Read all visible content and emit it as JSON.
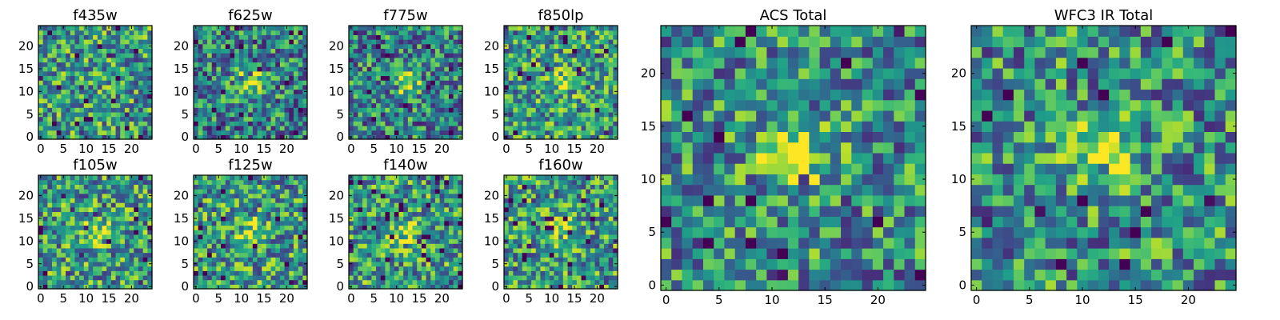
{
  "chart_data": [
    {
      "type": "heatmap",
      "title": "f435w",
      "grid": "25x25",
      "xlim": [
        0,
        24
      ],
      "ylim": [
        0,
        24
      ],
      "xticks": [
        "0",
        "5",
        "10",
        "15",
        "20"
      ],
      "yticks": [
        "0",
        "5",
        "10",
        "15",
        "20"
      ],
      "colormap": "viridis",
      "source_peak": 0.0
    },
    {
      "type": "heatmap",
      "title": "f625w",
      "grid": "25x25",
      "xlim": [
        0,
        24
      ],
      "ylim": [
        0,
        24
      ],
      "xticks": [
        "0",
        "5",
        "10",
        "15",
        "20"
      ],
      "yticks": [
        "0",
        "5",
        "10",
        "15",
        "20"
      ],
      "colormap": "viridis",
      "source_peak": 0.85
    },
    {
      "type": "heatmap",
      "title": "f775w",
      "grid": "25x25",
      "xlim": [
        0,
        24
      ],
      "ylim": [
        0,
        24
      ],
      "xticks": [
        "0",
        "5",
        "10",
        "15",
        "20"
      ],
      "yticks": [
        "0",
        "5",
        "10",
        "15",
        "20"
      ],
      "colormap": "viridis",
      "source_peak": 0.85
    },
    {
      "type": "heatmap",
      "title": "f850lp",
      "grid": "25x25",
      "xlim": [
        0,
        24
      ],
      "ylim": [
        0,
        24
      ],
      "xticks": [
        "0",
        "5",
        "10",
        "15",
        "20"
      ],
      "yticks": [
        "0",
        "5",
        "10",
        "15",
        "20"
      ],
      "colormap": "viridis",
      "source_peak": 0.4
    },
    {
      "type": "heatmap",
      "title": "f105w",
      "grid": "25x25",
      "xlim": [
        0,
        24
      ],
      "ylim": [
        0,
        24
      ],
      "xticks": [
        "0",
        "5",
        "10",
        "15",
        "20"
      ],
      "yticks": [
        "0",
        "5",
        "10",
        "15",
        "20"
      ],
      "colormap": "viridis",
      "source_peak": 0.5
    },
    {
      "type": "heatmap",
      "title": "f125w",
      "grid": "25x25",
      "xlim": [
        0,
        24
      ],
      "ylim": [
        0,
        24
      ],
      "xticks": [
        "0",
        "5",
        "10",
        "15",
        "20"
      ],
      "yticks": [
        "0",
        "5",
        "10",
        "15",
        "20"
      ],
      "colormap": "viridis",
      "source_peak": 0.6
    },
    {
      "type": "heatmap",
      "title": "f140w",
      "grid": "25x25",
      "xlim": [
        0,
        24
      ],
      "ylim": [
        0,
        24
      ],
      "xticks": [
        "0",
        "5",
        "10",
        "15",
        "20"
      ],
      "yticks": [
        "0",
        "5",
        "10",
        "15",
        "20"
      ],
      "colormap": "viridis",
      "source_peak": 0.5
    },
    {
      "type": "heatmap",
      "title": "f160w",
      "grid": "25x25",
      "xlim": [
        0,
        24
      ],
      "ylim": [
        0,
        24
      ],
      "xticks": [
        "0",
        "5",
        "10",
        "15",
        "20"
      ],
      "yticks": [
        "0",
        "5",
        "10",
        "15",
        "20"
      ],
      "colormap": "viridis",
      "source_peak": 0.6
    },
    {
      "type": "heatmap",
      "title": "ACS Total",
      "grid": "25x25",
      "xlim": [
        0,
        24
      ],
      "ylim": [
        0,
        24
      ],
      "xticks": [
        "0",
        "5",
        "10",
        "15",
        "20"
      ],
      "yticks": [
        "0",
        "5",
        "10",
        "15",
        "20"
      ],
      "colormap": "viridis",
      "source_peak": 1.0
    },
    {
      "type": "heatmap",
      "title": "WFC3 IR Total",
      "grid": "25x25",
      "xlim": [
        0,
        24
      ],
      "ylim": [
        0,
        24
      ],
      "xticks": [
        "0",
        "5",
        "10",
        "15",
        "20"
      ],
      "yticks": [
        "0",
        "5",
        "10",
        "15",
        "20"
      ],
      "colormap": "viridis",
      "source_peak": 0.95
    }
  ]
}
